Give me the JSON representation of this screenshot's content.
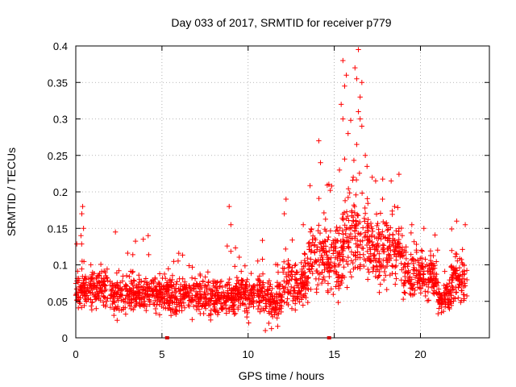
{
  "chart_data": {
    "type": "scatter",
    "title": "Day 033 of 2017, SRMTID for receiver p779",
    "xlabel": "GPS time / hours",
    "ylabel": "SRMTID / TECUs",
    "xlim": [
      0,
      24
    ],
    "ylim": [
      0,
      0.4
    ],
    "xticks": [
      0,
      5,
      10,
      15,
      20
    ],
    "xtick_labels": [
      "0",
      "5",
      "10",
      "15",
      "20"
    ],
    "yticks": [
      0,
      0.05,
      0.1,
      0.15,
      0.2,
      0.25,
      0.3,
      0.35,
      0.4
    ],
    "ytick_labels": [
      "0",
      "0.05",
      "0.1",
      "0.15",
      "0.2",
      "0.25",
      "0.3",
      "0.35",
      "0.4"
    ],
    "grid": true,
    "marker": "+",
    "series": [
      {
        "name": "SRMTID",
        "color": "#ff0000",
        "band_segments": [
          {
            "x": [
              0.0,
              2.0
            ],
            "center": 0.068,
            "spread": 0.028
          },
          {
            "x": [
              2.0,
              5.3
            ],
            "center": 0.06,
            "spread": 0.025
          },
          {
            "x": [
              5.3,
              8.5
            ],
            "center": 0.058,
            "spread": 0.025
          },
          {
            "x": [
              8.5,
              11.0
            ],
            "center": 0.06,
            "spread": 0.025
          },
          {
            "x": [
              11.0,
              12.0
            ],
            "center": 0.05,
            "spread": 0.025
          },
          {
            "x": [
              12.0,
              13.5
            ],
            "center": 0.075,
            "spread": 0.03
          },
          {
            "x": [
              13.5,
              15.5
            ],
            "center": 0.11,
            "spread": 0.045
          },
          {
            "x": [
              15.5,
              17.0
            ],
            "center": 0.14,
            "spread": 0.06
          },
          {
            "x": [
              17.0,
              19.0
            ],
            "center": 0.12,
            "spread": 0.045
          },
          {
            "x": [
              19.0,
              21.0
            ],
            "center": 0.085,
            "spread": 0.03
          },
          {
            "x": [
              21.0,
              21.8
            ],
            "center": 0.055,
            "spread": 0.02
          },
          {
            "x": [
              21.8,
              22.7
            ],
            "center": 0.08,
            "spread": 0.03
          }
        ],
        "outliers": [
          {
            "x": 0.4,
            "y": 0.18
          },
          {
            "x": 0.35,
            "y": 0.17
          },
          {
            "x": 0.45,
            "y": 0.15
          },
          {
            "x": 0.3,
            "y": 0.14
          },
          {
            "x": 2.3,
            "y": 0.145
          },
          {
            "x": 4.2,
            "y": 0.14
          },
          {
            "x": 8.9,
            "y": 0.18
          },
          {
            "x": 9.0,
            "y": 0.155
          },
          {
            "x": 12.2,
            "y": 0.19
          },
          {
            "x": 12.1,
            "y": 0.17
          },
          {
            "x": 14.1,
            "y": 0.27
          },
          {
            "x": 14.2,
            "y": 0.24
          },
          {
            "x": 15.5,
            "y": 0.38
          },
          {
            "x": 15.7,
            "y": 0.36
          },
          {
            "x": 15.6,
            "y": 0.345
          },
          {
            "x": 15.4,
            "y": 0.32
          },
          {
            "x": 15.5,
            "y": 0.3
          },
          {
            "x": 15.8,
            "y": 0.28
          },
          {
            "x": 16.4,
            "y": 0.395
          },
          {
            "x": 16.2,
            "y": 0.37
          },
          {
            "x": 16.3,
            "y": 0.355
          },
          {
            "x": 16.6,
            "y": 0.35
          },
          {
            "x": 16.5,
            "y": 0.33
          },
          {
            "x": 16.4,
            "y": 0.31
          },
          {
            "x": 16.5,
            "y": 0.3
          },
          {
            "x": 16.6,
            "y": 0.29
          },
          {
            "x": 16.3,
            "y": 0.265
          },
          {
            "x": 16.8,
            "y": 0.25
          },
          {
            "x": 16.9,
            "y": 0.235
          },
          {
            "x": 17.2,
            "y": 0.22
          },
          {
            "x": 17.4,
            "y": 0.215
          },
          {
            "x": 18.3,
            "y": 0.215
          },
          {
            "x": 15.3,
            "y": 0.23
          },
          {
            "x": 15.6,
            "y": 0.245
          },
          {
            "x": 16.1,
            "y": 0.22
          },
          {
            "x": 22.1,
            "y": 0.16
          },
          {
            "x": 22.6,
            "y": 0.155
          },
          {
            "x": 19.5,
            "y": 0.155
          },
          {
            "x": 20.2,
            "y": 0.15
          },
          {
            "x": 17.8,
            "y": 0.19
          },
          {
            "x": 18.5,
            "y": 0.18
          },
          {
            "x": 13.2,
            "y": 0.155
          },
          {
            "x": 11.0,
            "y": 0.01
          },
          {
            "x": 11.2,
            "y": 0.02
          }
        ]
      }
    ],
    "axis_markers": [
      {
        "x": 5.3,
        "y": 0
      },
      {
        "x": 14.7,
        "y": 0
      }
    ]
  }
}
